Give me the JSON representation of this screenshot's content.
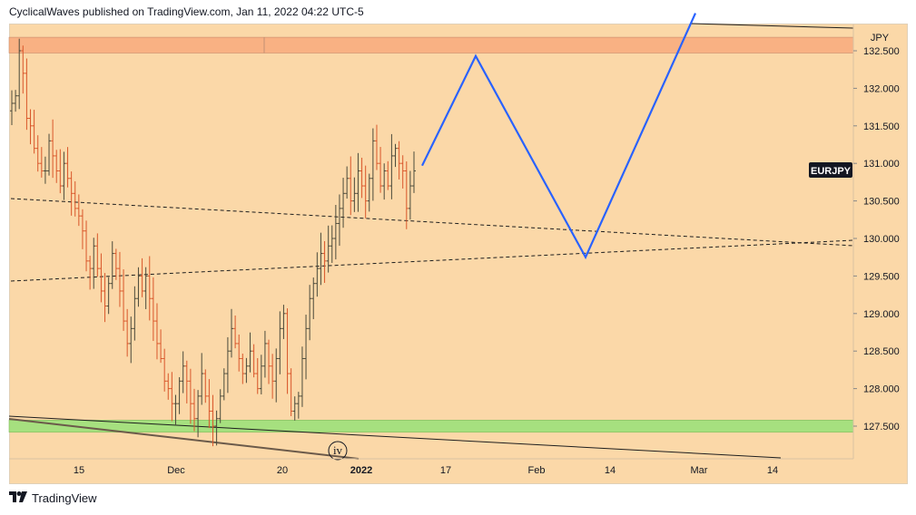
{
  "header": {
    "published_text": "CyclicalWaves published on TradingView.com, Jan 11, 2022 04:22 UTC-5"
  },
  "footer": {
    "brand": "TradingView"
  },
  "colors": {
    "background": "#fbd8a8",
    "up_bar": "#4b4b3b",
    "down_bar": "#d9572b",
    "projection": "#2962ff",
    "resistance_zone": "#f9b183",
    "support_zone": "#a6e07f",
    "trendline": "#1e1e1e"
  },
  "chart_data": {
    "type": "ohlc",
    "symbol": "EURJPY",
    "currency": "JPY",
    "y_ticks": [
      "132.500",
      "132.000",
      "131.500",
      "131.000",
      "130.500",
      "130.000",
      "129.500",
      "129.000",
      "128.500",
      "128.000",
      "127.500"
    ],
    "ylim": [
      127.0,
      132.9
    ],
    "x_ticks": [
      "15",
      "Dec",
      "20",
      "2022",
      "17",
      "Feb",
      "14",
      "Mar",
      "14"
    ],
    "closes": [
      131.8,
      131.9,
      132.5,
      132.2,
      131.6,
      131.5,
      131.2,
      131.0,
      130.9,
      130.9,
      131.3,
      131.1,
      130.9,
      130.7,
      131.0,
      130.8,
      130.6,
      130.4,
      130.3,
      130.1,
      129.7,
      129.6,
      129.9,
      129.6,
      129.3,
      129.1,
      129.4,
      129.8,
      129.6,
      129.3,
      128.9,
      128.6,
      128.8,
      129.2,
      129.5,
      129.3,
      129.5,
      129.2,
      128.9,
      128.6,
      128.4,
      128.1,
      128.0,
      127.8,
      127.8,
      128.1,
      128.3,
      128.1,
      127.8,
      127.6,
      127.9,
      128.2,
      127.9,
      127.7,
      127.5,
      127.6,
      127.9,
      128.2,
      128.5,
      128.8,
      128.6,
      128.4,
      128.2,
      128.3,
      128.5,
      128.2,
      128.0,
      128.3,
      128.6,
      128.3,
      128.1,
      128.4,
      128.8,
      129.0,
      128.2,
      127.7,
      127.8,
      127.9,
      128.4,
      128.8,
      129.2,
      129.4,
      129.6,
      129.8,
      129.7,
      129.9,
      130.0,
      130.2,
      130.4,
      130.6,
      130.8,
      130.5,
      130.6,
      130.9,
      130.7,
      130.5,
      130.8,
      131.3,
      131.0,
      130.7,
      130.9,
      130.7,
      131.1,
      131.2,
      131.0,
      130.9,
      130.4,
      130.7,
      130.9
    ],
    "resistance_zone": [
      132.47,
      132.68
    ],
    "support_zone": [
      127.42,
      127.58
    ],
    "projection_path": [
      {
        "date": "2022-01-12",
        "price": 130.97
      },
      {
        "date": "2022-01-21",
        "price": 132.43
      },
      {
        "date": "2022-02-09",
        "price": 129.75
      },
      {
        "date": "2022-03-01",
        "price": 133.0
      }
    ],
    "price_label": "EURJPY",
    "wave_label": "iv"
  }
}
